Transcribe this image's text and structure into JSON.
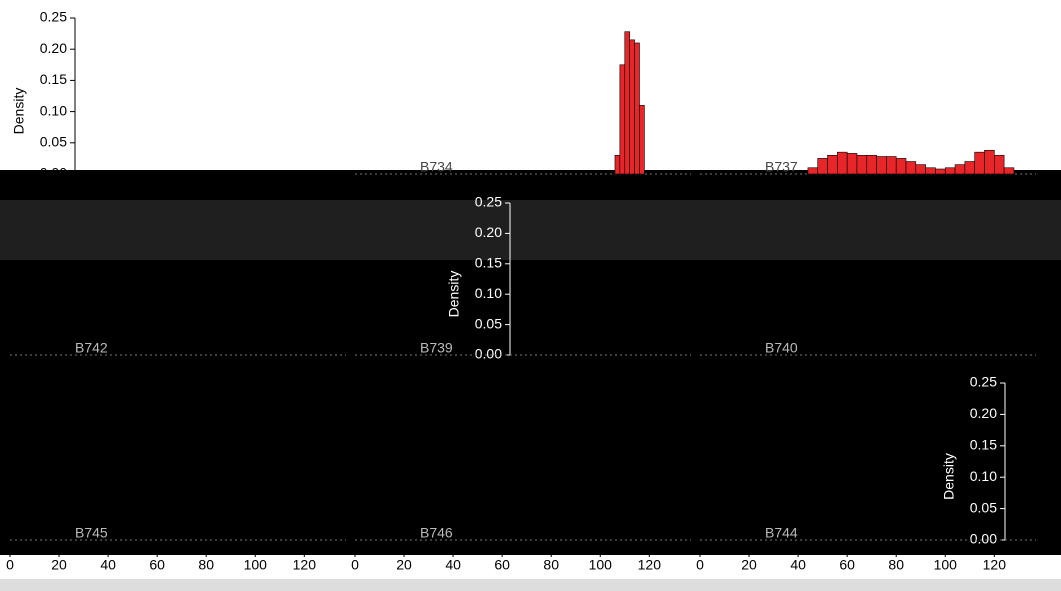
{
  "chart_data": {
    "type": "histogram",
    "y_label": "Density",
    "color": "#e8262a",
    "ylim": [
      0,
      0.25
    ],
    "yticks": [
      {
        "value": 0,
        "label": "0.00"
      },
      0.05,
      {
        "value": 0.1,
        "label": "0.10"
      },
      0.15,
      {
        "value": 0.2,
        "label": "0.20"
      },
      0.25
    ],
    "xlim": [
      0,
      137
    ],
    "xticks": [
      0,
      20,
      40,
      60,
      80,
      100,
      120
    ],
    "panels": [
      {
        "title": "B734",
        "bins": [
          106,
          108,
          110,
          112,
          114,
          116,
          118
        ],
        "values": [
          0.03,
          0.175,
          0.228,
          0.215,
          0.21,
          0.11
        ]
      },
      {
        "title": "B737",
        "bins": [
          44,
          48,
          52,
          56,
          60,
          64,
          68,
          72,
          76,
          80,
          84,
          88,
          92,
          96,
          100,
          104,
          108,
          112,
          116,
          120,
          124,
          128
        ],
        "values": [
          0.01,
          0.025,
          0.03,
          0.035,
          0.033,
          0.03,
          0.03,
          0.028,
          0.028,
          0.025,
          0.02,
          0.015,
          0.01,
          0.008,
          0.01,
          0.015,
          0.02,
          0.035,
          0.038,
          0.03,
          0.01
        ]
      },
      {
        "title": "B742"
      },
      {
        "title": "B739"
      },
      {
        "title": "B740"
      },
      {
        "title": "B745"
      },
      {
        "title": "B746"
      },
      {
        "title": "B744"
      }
    ]
  }
}
